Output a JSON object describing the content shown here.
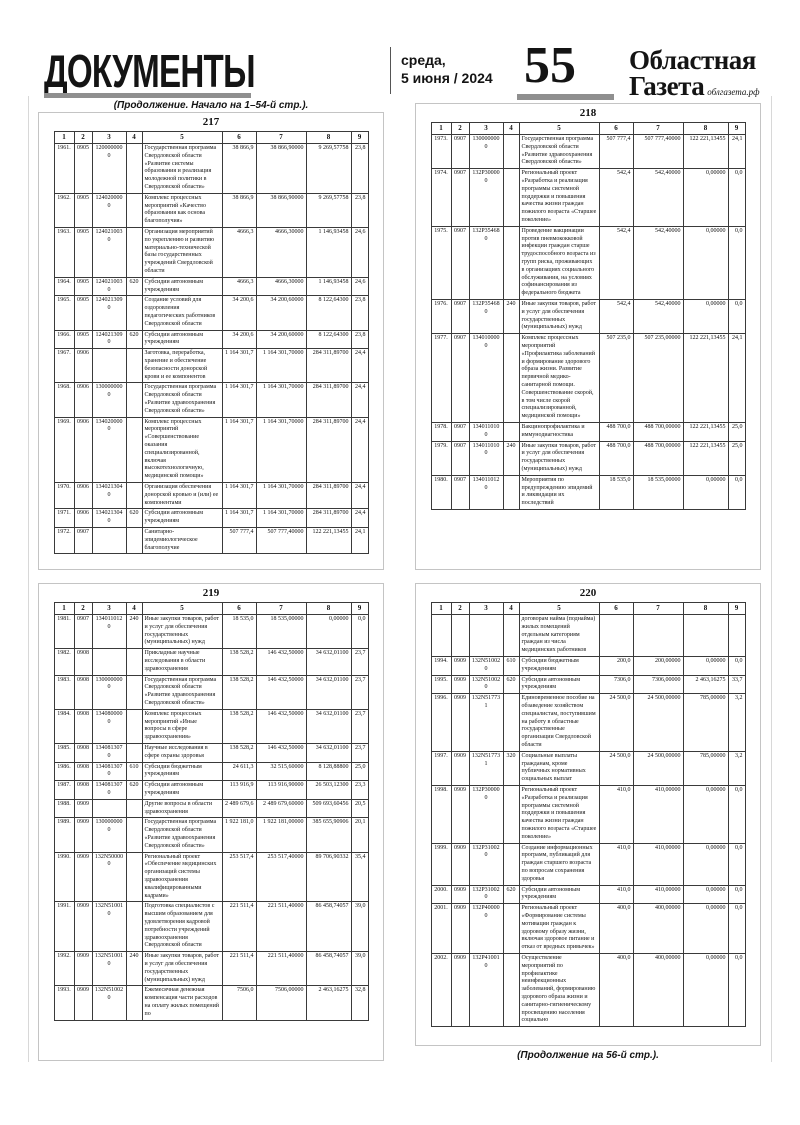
{
  "header": {
    "section_title": "ДОКУМЕНТЫ",
    "date_line1": "среда,",
    "date_line2": "5 июня / 2024",
    "page_number": "55",
    "masthead_line1": "Областная",
    "masthead_line2": "Газета",
    "masthead_site": "облгазета.рф"
  },
  "notes": {
    "continuation_top": "(Продолжение. Начало на 1–54-й стр.).",
    "continuation_bottom": "(Продолжение на 56-й стр.)."
  },
  "column_headers": [
    "1",
    "2",
    "3",
    "4",
    "5",
    "6",
    "7",
    "8",
    "9"
  ],
  "tables": [
    {
      "number": "217",
      "rows": [
        [
          "1961.",
          "0905",
          "1200000000",
          "",
          "Государственная программа Свердловской области «Развитие системы образования и реализация молодежной политики в Свердловской области»",
          "38 866,9",
          "38 866,90000",
          "9 269,57758",
          "23,8"
        ],
        [
          "1962.",
          "0905",
          "1240200000",
          "",
          "Комплекс процессных мероприятий «Качество образования как основа благополучия»",
          "38 866,9",
          "38 866,90000",
          "9 269,57758",
          "23,8"
        ],
        [
          "1963.",
          "0905",
          "1240210030",
          "",
          "Организация мероприятий по укреплению и развитию материально-технической базы государственных учреждений Свердловской области",
          "4666,3",
          "4666,30000",
          "1 146,93458",
          "24,6"
        ],
        [
          "1964.",
          "0905",
          "1240210030",
          "620",
          "Субсидии автономным учреждениям",
          "4666,3",
          "4666,30000",
          "1 146,93458",
          "24,6"
        ],
        [
          "1965.",
          "0905",
          "1240213090",
          "",
          "Создание условий для оздоровления педагогических работников Свердловской области",
          "34 200,6",
          "34 200,60000",
          "8 122,64300",
          "23,8"
        ],
        [
          "1966.",
          "0905",
          "1240213090",
          "620",
          "Субсидии автономным учреждениям",
          "34 200,6",
          "34 200,60000",
          "8 122,64300",
          "23,8"
        ],
        [
          "1967.",
          "0906",
          "",
          "",
          "Заготовка, переработка, хранение и обеспечение безопасности донорской крови и ее компонентов",
          "1 164 301,7",
          "1 164 301,70000",
          "284 311,89700",
          "24,4"
        ],
        [
          "1968.",
          "0906",
          "1300000000",
          "",
          "Государственная программа Свердловской области «Развитие здравоохранения Свердловской области»",
          "1 164 301,7",
          "1 164 301,70000",
          "284 311,89700",
          "24,4"
        ],
        [
          "1969.",
          "0906",
          "1340200000",
          "",
          "Комплекс процессных мероприятий «Совершенствование оказания специализированной, включая высокотехнологичную, медицинской помощи»",
          "1 164 301,7",
          "1 164 301,70000",
          "284 311,89700",
          "24,4"
        ],
        [
          "1970.",
          "0906",
          "1340213040",
          "",
          "Организация обеспечения донорской кровью и (или) ее компонентами",
          "1 164 301,7",
          "1 164 301,70000",
          "284 311,89700",
          "24,4"
        ],
        [
          "1971.",
          "0906",
          "1340213040",
          "620",
          "Субсидии автономным учреждениям",
          "1 164 301,7",
          "1 164 301,70000",
          "284 311,89700",
          "24,4"
        ],
        [
          "1972.",
          "0907",
          "",
          "",
          "Санитарно-эпидемиологическое благополучие",
          "507 777,4",
          "507 777,40000",
          "122 221,13455",
          "24,1"
        ]
      ]
    },
    {
      "number": "218",
      "rows": [
        [
          "1973.",
          "0907",
          "1300000000",
          "",
          "Государственная программа Свердловской области «Развитие здравоохранения Свердловской области»",
          "507 777,4",
          "507 777,40000",
          "122 221,13455",
          "24,1"
        ],
        [
          "1974.",
          "0907",
          "132P300000",
          "",
          "Региональный проект «Разработка и реализация программы системной поддержки и повышения качества жизни граждан пожилого возраста «Старшее поколение»",
          "542,4",
          "542,40000",
          "0,00000",
          "0,0"
        ],
        [
          "1975.",
          "0907",
          "132P354680",
          "",
          "Проведение вакцинации против пневмококковой инфекции граждан старше трудоспособного возраста из групп риска, проживающих в организациях социального обслуживания, на условиях софинансирования из федерального бюджета",
          "542,4",
          "542,40000",
          "0,00000",
          "0,0"
        ],
        [
          "1976.",
          "0907",
          "132P354680",
          "240",
          "Иные закупки товаров, работ и услуг для обеспечения государственных (муниципальных) нужд",
          "542,4",
          "542,40000",
          "0,00000",
          "0,0"
        ],
        [
          "1977.",
          "0907",
          "1340100000",
          "",
          "Комплекс процессных мероприятий «Профилактика заболеваний и формирование здорового образа жизни. Развитие первичной медико-санитарной помощи. Совершенствование скорой, в том числе скорой специализированной, медицинской помощи»",
          "507 235,0",
          "507 235,00000",
          "122 221,13455",
          "24,1"
        ],
        [
          "1978.",
          "0907",
          "1340110100",
          "",
          "Вакцинопрофилактика и иммунодиагностика",
          "488 700,0",
          "488 700,00000",
          "122 221,13455",
          "25,0"
        ],
        [
          "1979.",
          "0907",
          "1340110100",
          "240",
          "Иные закупки товаров, работ и услуг для обеспечения государственных (муниципальных) нужд",
          "488 700,0",
          "488 700,00000",
          "122 221,13455",
          "25,0"
        ],
        [
          "1980.",
          "0907",
          "1340110120",
          "",
          "Мероприятия по предупреждению эпидемий и ликвидации их последствий",
          "18 535,0",
          "18 535,00000",
          "0,00000",
          "0,0"
        ]
      ]
    },
    {
      "number": "219",
      "rows": [
        [
          "1981.",
          "0907",
          "1340110120",
          "240",
          "Иные закупки товаров, работ и услуг для обеспечения государственных (муниципальных) нужд",
          "18 535,0",
          "18 535,00000",
          "0,00000",
          "0,0"
        ],
        [
          "1982.",
          "0908",
          "",
          "",
          "Прикладные научные исследования в области здравоохранения",
          "138 528,2",
          "146 432,50000",
          "34 632,01100",
          "23,7"
        ],
        [
          "1983.",
          "0908",
          "1300000000",
          "",
          "Государственная программа Свердловской области «Развитие здравоохранения Свердловской области»",
          "138 528,2",
          "146 432,50000",
          "34 632,01100",
          "23,7"
        ],
        [
          "1984.",
          "0908",
          "1340800000",
          "",
          "Комплекс процессных мероприятий «Иные вопросы в сфере здравоохранения»",
          "138 528,2",
          "146 432,50000",
          "34 632,01100",
          "23,7"
        ],
        [
          "1985.",
          "0908",
          "1340813070",
          "",
          "Научные исследования в сфере охраны здоровья",
          "138 528,2",
          "146 432,50000",
          "34 632,01100",
          "23,7"
        ],
        [
          "1986.",
          "0908",
          "1340813070",
          "610",
          "Субсидии бюджетным учреждениям",
          "24 611,3",
          "32 515,60000",
          "8 128,88800",
          "25,0"
        ],
        [
          "1987.",
          "0908",
          "1340813070",
          "620",
          "Субсидии автономным учреждениям",
          "113 916,9",
          "113 916,90000",
          "26 503,12300",
          "23,3"
        ],
        [
          "1988.",
          "0909",
          "",
          "",
          "Другие вопросы в области здравоохранения",
          "2 489 679,6",
          "2 489 679,60000",
          "509 693,60456",
          "20,5"
        ],
        [
          "1989.",
          "0909",
          "1300000000",
          "",
          "Государственная программа Свердловской области «Развитие здравоохранения Свердловской области»",
          "1 922 181,0",
          "1 922 181,00000",
          "385 655,90906",
          "20,1"
        ],
        [
          "1990.",
          "0909",
          "132N500000",
          "",
          "Региональный проект «Обеспечение медицинских организаций системы здравоохранения квалифицированными кадрами»",
          "253 517,4",
          "253 517,40000",
          "89 706,90332",
          "35,4"
        ],
        [
          "1991.",
          "0909",
          "132N510010",
          "",
          "Подготовка специалистов с высшим образованием для удовлетворения кадровой потребности учреждений здравоохранения Свердловской области",
          "221 511,4",
          "221 511,40000",
          "86 458,74057",
          "39,0"
        ],
        [
          "1992.",
          "0909",
          "132N510010",
          "240",
          "Иные закупки товаров, работ и услуг для обеспечения государственных (муниципальных) нужд",
          "221 511,4",
          "221 511,40000",
          "86 458,74057",
          "39,0"
        ],
        [
          "1993.",
          "0909",
          "132N510020",
          "",
          "Ежемесячная денежная компенсация части расходов на оплату жилых помещений по",
          "7506,0",
          "7506,00000",
          "2 463,16275",
          "32,8"
        ]
      ]
    },
    {
      "number": "220",
      "rows": [
        [
          "",
          "",
          "",
          "",
          "договорам найма (поднайма) жилых помещений отдельным категориям граждан из числа медицинских работников",
          "",
          "",
          "",
          ""
        ],
        [
          "1994.",
          "0909",
          "132N510020",
          "610",
          "Субсидии бюджетным учреждениям",
          "200,0",
          "200,00000",
          "0,00000",
          "0,0"
        ],
        [
          "1995.",
          "0909",
          "132N510020",
          "620",
          "Субсидии автономным учреждениям",
          "7306,0",
          "7306,00000",
          "2 463,16275",
          "33,7"
        ],
        [
          "1996.",
          "0909",
          "132N517731",
          "",
          "Единовременное пособие на обзаведение хозяйством специалистам, поступившим на работу в областные государственные организации Свердловской области",
          "24 500,0",
          "24 500,00000",
          "785,00000",
          "3,2"
        ],
        [
          "1997.",
          "0909",
          "132N517731",
          "320",
          "Социальные выплаты гражданам, кроме публичных нормативных социальных выплат",
          "24 500,0",
          "24 500,00000",
          "785,00000",
          "3,2"
        ],
        [
          "1998.",
          "0909",
          "132P300000",
          "",
          "Региональный проект «Разработка и реализация программы системной поддержки и повышения качества жизни граждан пожилого возраста «Старшее поколение»",
          "410,0",
          "410,00000",
          "0,00000",
          "0,0"
        ],
        [
          "1999.",
          "0909",
          "132P310020",
          "",
          "Создание информационных программ, публикаций для граждан старшего возраста по вопросам сохранения здоровья",
          "410,0",
          "410,00000",
          "0,00000",
          "0,0"
        ],
        [
          "2000.",
          "0909",
          "132P310020",
          "620",
          "Субсидии автономным учреждениям",
          "410,0",
          "410,00000",
          "0,00000",
          "0,0"
        ],
        [
          "2001.",
          "0909",
          "132P400000",
          "",
          "Региональный проект «Формирование системы мотивации граждан к здоровому образу жизни, включая здоровое питание и отказ от вредных привычек»",
          "400,0",
          "400,00000",
          "0,00000",
          "0,0"
        ],
        [
          "2002.",
          "0909",
          "132P410010",
          "",
          "Осуществление мероприятий по профилактике неинфекционных заболеваний, формированию здорового образа жизни и санитарно-гигиеническому просвещению населения социально",
          "400,0",
          "400,00000",
          "0,00000",
          "0,0"
        ]
      ]
    }
  ]
}
